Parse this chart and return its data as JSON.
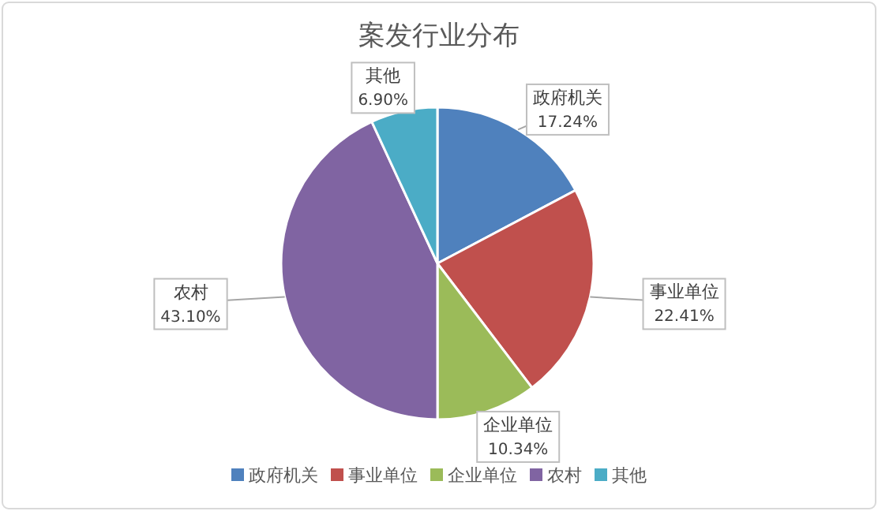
{
  "chart_data": {
    "type": "pie",
    "title": "案发行业分布",
    "categories": [
      "政府机关",
      "事业单位",
      "企业单位",
      "农村",
      "其他"
    ],
    "values": [
      17.24,
      22.41,
      10.34,
      43.1,
      6.9
    ],
    "colors": [
      "#4f81bd",
      "#c0504d",
      "#9bbb59",
      "#8064a2",
      "#4bacc6"
    ],
    "value_labels": [
      "17.24%",
      "22.41%",
      "10.34%",
      "43.10%",
      "6.90%"
    ],
    "legend": "bottom"
  }
}
